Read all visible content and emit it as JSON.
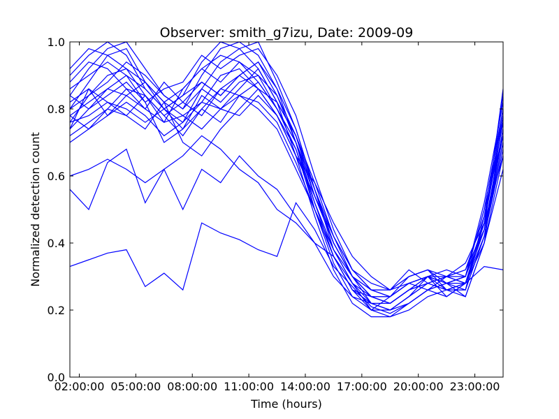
{
  "chart_data": {
    "type": "line",
    "title": "Observer: smith_g7izu, Date: 2009-09",
    "xlabel": "Time (hours)",
    "ylabel": "Normalized detection count",
    "xlim": [
      "01:30:00",
      "24:30:00"
    ],
    "ylim": [
      0.0,
      1.0
    ],
    "x_ticks": [
      "02:00:00",
      "05:00:00",
      "08:00:00",
      "11:00:00",
      "14:00:00",
      "17:00:00",
      "20:00:00",
      "23:00:00"
    ],
    "y_ticks": [
      "0.0",
      "0.2",
      "0.4",
      "0.6",
      "0.8",
      "1.0"
    ],
    "line_color": "#0000ff",
    "grid": false,
    "legend": "none",
    "x": [
      "01:30:00",
      "02:30:00",
      "03:30:00",
      "04:30:00",
      "05:30:00",
      "06:30:00",
      "07:30:00",
      "08:30:00",
      "09:30:00",
      "10:30:00",
      "11:30:00",
      "12:30:00",
      "13:30:00",
      "14:30:00",
      "15:30:00",
      "16:30:00",
      "17:30:00",
      "18:30:00",
      "19:30:00",
      "20:30:00",
      "21:30:00",
      "22:30:00",
      "23:30:00",
      "24:30:00"
    ],
    "series": [
      {
        "values": [
          0.33,
          0.35,
          0.37,
          0.38,
          0.27,
          0.31,
          0.26,
          0.46,
          0.43,
          0.41,
          0.38,
          0.36,
          0.52,
          0.44,
          0.33,
          0.27,
          0.21,
          0.19,
          0.22,
          0.26,
          0.24,
          0.28,
          0.33,
          0.32
        ]
      },
      {
        "values": [
          0.56,
          0.5,
          0.64,
          0.68,
          0.52,
          0.62,
          0.5,
          0.62,
          0.58,
          0.66,
          0.6,
          0.56,
          0.48,
          0.4,
          0.3,
          0.24,
          0.22,
          0.2,
          0.24,
          0.3,
          0.28,
          0.24,
          0.4,
          0.62
        ]
      },
      {
        "values": [
          0.6,
          0.62,
          0.65,
          0.62,
          0.58,
          0.62,
          0.66,
          0.72,
          0.68,
          0.62,
          0.58,
          0.5,
          0.46,
          0.4,
          0.36,
          0.28,
          0.2,
          0.24,
          0.28,
          0.26,
          0.3,
          0.32,
          0.44,
          0.86
        ]
      },
      {
        "values": [
          0.72,
          0.76,
          0.8,
          0.78,
          0.74,
          0.82,
          0.7,
          0.66,
          0.74,
          0.8,
          0.86,
          0.78,
          0.66,
          0.58,
          0.46,
          0.36,
          0.3,
          0.26,
          0.32,
          0.28,
          0.3,
          0.34,
          0.46,
          0.66
        ]
      },
      {
        "values": [
          0.76,
          0.84,
          0.9,
          0.92,
          0.84,
          0.78,
          0.72,
          0.8,
          0.86,
          0.9,
          0.94,
          0.84,
          0.7,
          0.56,
          0.4,
          0.3,
          0.24,
          0.22,
          0.26,
          0.3,
          0.28,
          0.3,
          0.5,
          0.72
        ]
      },
      {
        "values": [
          0.8,
          0.88,
          0.96,
          0.98,
          0.88,
          0.8,
          0.76,
          0.86,
          0.94,
          0.98,
          1.0,
          0.88,
          0.74,
          0.56,
          0.38,
          0.28,
          0.22,
          0.2,
          0.24,
          0.28,
          0.3,
          0.28,
          0.44,
          0.7
        ]
      },
      {
        "values": [
          0.84,
          0.92,
          0.98,
          1.0,
          0.92,
          0.84,
          0.8,
          0.9,
          0.98,
          1.0,
          0.96,
          0.86,
          0.7,
          0.5,
          0.34,
          0.24,
          0.2,
          0.18,
          0.22,
          0.26,
          0.28,
          0.26,
          0.42,
          0.74
        ]
      },
      {
        "values": [
          0.9,
          0.96,
          1.0,
          0.96,
          0.86,
          0.8,
          0.84,
          0.94,
          1.0,
          0.98,
          0.92,
          0.82,
          0.66,
          0.48,
          0.32,
          0.22,
          0.18,
          0.18,
          0.2,
          0.24,
          0.26,
          0.24,
          0.4,
          0.78
        ]
      },
      {
        "values": [
          0.78,
          0.82,
          0.86,
          0.84,
          0.8,
          0.76,
          0.86,
          0.92,
          0.88,
          0.94,
          0.88,
          0.8,
          0.7,
          0.52,
          0.36,
          0.26,
          0.24,
          0.22,
          0.26,
          0.3,
          0.24,
          0.28,
          0.46,
          0.8
        ]
      },
      {
        "values": [
          0.74,
          0.8,
          0.84,
          0.88,
          0.82,
          0.7,
          0.74,
          0.84,
          0.8,
          0.86,
          0.92,
          0.82,
          0.72,
          0.54,
          0.42,
          0.3,
          0.26,
          0.24,
          0.3,
          0.32,
          0.26,
          0.26,
          0.48,
          0.76
        ]
      },
      {
        "values": [
          0.86,
          0.9,
          0.94,
          0.9,
          0.82,
          0.86,
          0.88,
          0.96,
          0.92,
          0.96,
          0.98,
          0.9,
          0.78,
          0.6,
          0.44,
          0.32,
          0.26,
          0.24,
          0.28,
          0.3,
          0.32,
          0.3,
          0.52,
          0.82
        ]
      },
      {
        "values": [
          0.82,
          0.86,
          0.78,
          0.84,
          0.88,
          0.82,
          0.78,
          0.82,
          0.9,
          0.92,
          0.86,
          0.78,
          0.68,
          0.52,
          0.38,
          0.28,
          0.24,
          0.22,
          0.26,
          0.28,
          0.26,
          0.28,
          0.44,
          0.72
        ]
      },
      {
        "values": [
          0.88,
          0.94,
          0.92,
          0.86,
          0.8,
          0.88,
          0.82,
          0.88,
          0.84,
          0.9,
          0.94,
          0.86,
          0.74,
          0.56,
          0.4,
          0.3,
          0.22,
          0.2,
          0.24,
          0.28,
          0.3,
          0.32,
          0.48,
          0.78
        ]
      },
      {
        "values": [
          0.76,
          0.78,
          0.82,
          0.8,
          0.76,
          0.8,
          0.74,
          0.8,
          0.76,
          0.84,
          0.82,
          0.76,
          0.64,
          0.5,
          0.36,
          0.26,
          0.22,
          0.22,
          0.26,
          0.28,
          0.26,
          0.26,
          0.42,
          0.68
        ]
      },
      {
        "values": [
          0.8,
          0.84,
          0.88,
          0.94,
          0.9,
          0.84,
          0.8,
          0.86,
          0.82,
          0.88,
          0.9,
          0.84,
          0.72,
          0.58,
          0.42,
          0.32,
          0.28,
          0.26,
          0.3,
          0.32,
          0.28,
          0.3,
          0.5,
          0.8
        ]
      },
      {
        "values": [
          0.7,
          0.74,
          0.78,
          0.82,
          0.78,
          0.72,
          0.76,
          0.82,
          0.8,
          0.84,
          0.8,
          0.74,
          0.62,
          0.5,
          0.38,
          0.3,
          0.26,
          0.26,
          0.28,
          0.3,
          0.3,
          0.28,
          0.4,
          0.66
        ]
      },
      {
        "values": [
          0.92,
          0.98,
          0.96,
          0.92,
          0.88,
          0.82,
          0.86,
          0.92,
          0.96,
          0.94,
          0.9,
          0.8,
          0.68,
          0.5,
          0.36,
          0.26,
          0.2,
          0.2,
          0.22,
          0.26,
          0.28,
          0.28,
          0.46,
          0.84
        ]
      },
      {
        "values": [
          0.78,
          0.74,
          0.8,
          0.86,
          0.84,
          0.78,
          0.82,
          0.78,
          0.86,
          0.84,
          0.88,
          0.8,
          0.7,
          0.54,
          0.4,
          0.3,
          0.24,
          0.24,
          0.28,
          0.3,
          0.28,
          0.3,
          0.44,
          0.74
        ]
      },
      {
        "values": [
          0.84,
          0.8,
          0.86,
          0.9,
          0.86,
          0.8,
          0.84,
          0.88,
          0.84,
          0.9,
          0.86,
          0.82,
          0.72,
          0.56,
          0.42,
          0.32,
          0.26,
          0.26,
          0.3,
          0.32,
          0.3,
          0.3,
          0.46,
          0.76
        ]
      },
      {
        "values": [
          0.74,
          0.86,
          0.82,
          0.78,
          0.84,
          0.76,
          0.78,
          0.74,
          0.8,
          0.78,
          0.84,
          0.78,
          0.66,
          0.54,
          0.4,
          0.3,
          0.24,
          0.24,
          0.28,
          0.3,
          0.26,
          0.28,
          0.42,
          0.7
        ]
      }
    ]
  }
}
